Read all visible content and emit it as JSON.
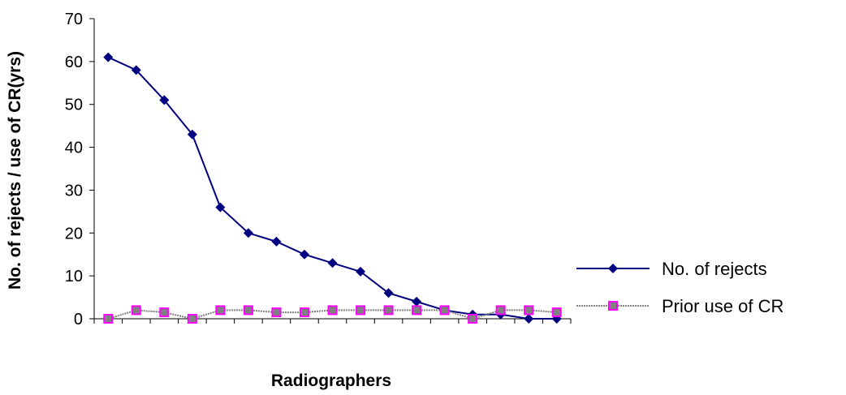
{
  "chart_data": {
    "type": "line",
    "title": "",
    "xlabel": "Radiographers",
    "ylabel": "No. of rejects / use of CR(yrs)",
    "ylim": [
      0,
      70
    ],
    "yticks": [
      "0",
      "10",
      "20",
      "30",
      "40",
      "50",
      "60",
      "70"
    ],
    "x": [
      1,
      2,
      3,
      4,
      5,
      6,
      7,
      8,
      9,
      10,
      11,
      12,
      13,
      14,
      15,
      16,
      17
    ],
    "grid": false,
    "legend_position": "right",
    "series": [
      {
        "name": "No. of rejects",
        "color": "#000080",
        "marker": "diamond",
        "values": [
          61,
          58,
          51,
          43,
          26,
          20,
          18,
          15,
          13,
          11,
          6,
          4,
          2,
          1,
          1,
          0,
          0
        ]
      },
      {
        "name": "Prior use of CR",
        "color": "#808080",
        "marker_fill": "#808080",
        "marker_edge": "#ff00ff",
        "marker": "square",
        "values": [
          0,
          2,
          1.5,
          0,
          2,
          2,
          1.5,
          1.5,
          2,
          2,
          2,
          2,
          2,
          0,
          2,
          2,
          1.5
        ]
      }
    ]
  }
}
